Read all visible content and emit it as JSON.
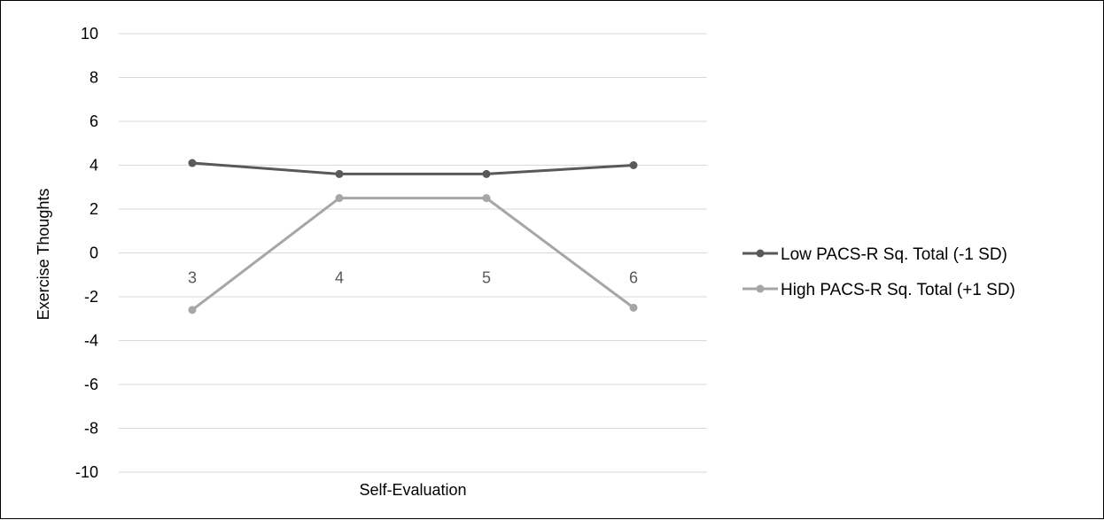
{
  "chart_data": {
    "type": "line",
    "title": "",
    "xlabel": "Self-Evaluation",
    "ylabel": "Exercise Thoughts",
    "ylim": [
      -10,
      10
    ],
    "y_ticks": [
      10,
      8,
      6,
      4,
      2,
      0,
      -2,
      -4,
      -6,
      -8,
      -10
    ],
    "categories": [
      "3",
      "4",
      "5",
      "6"
    ],
    "grid": true,
    "legend_position": "right",
    "series": [
      {
        "name": "Low PACS-R Sq. Total (-1 SD)",
        "color": "#595959",
        "values": [
          4.1,
          3.6,
          3.6,
          4.0
        ]
      },
      {
        "name": "High PACS-R Sq. Total (+1 SD)",
        "color": "#A6A6A6",
        "values": [
          -2.6,
          2.5,
          2.5,
          -2.5
        ]
      }
    ]
  }
}
